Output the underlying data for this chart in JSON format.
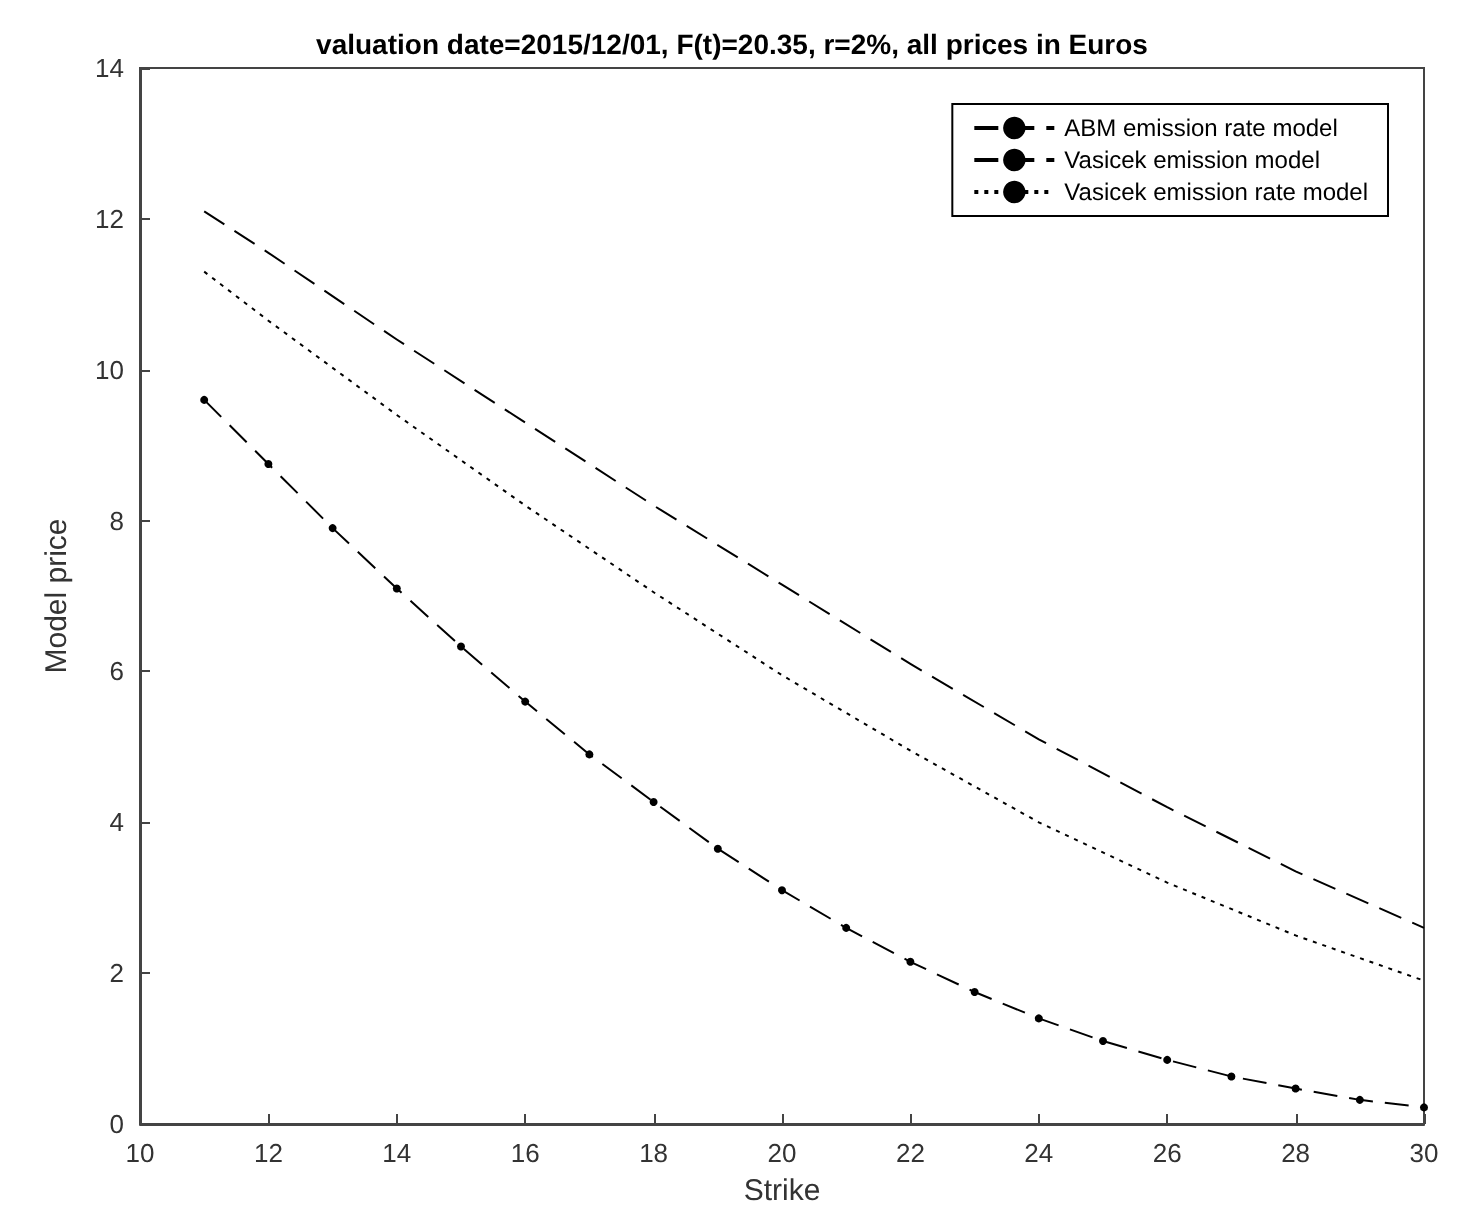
{
  "chart_data": {
    "type": "line",
    "title": "valuation date=2015/12/01, F(t)=20.35, r=2%, all prices in Euros",
    "xlabel": "Strike",
    "ylabel": "Model price",
    "xlim": [
      10,
      30
    ],
    "xticks": [
      10,
      12,
      14,
      16,
      18,
      20,
      22,
      24,
      26,
      28,
      30
    ],
    "ylim": [
      0,
      14
    ],
    "yticks": [
      0,
      2,
      4,
      6,
      8,
      10,
      12,
      14
    ],
    "grid": false,
    "legend": "top right",
    "series": [
      {
        "name": "ABM emission rate model",
        "color": "#000000",
        "line_style": "dashed",
        "marker": "none",
        "x": [
          11,
          12,
          14,
          16,
          18,
          20,
          22,
          24,
          26,
          28,
          30
        ],
        "values": [
          12.1,
          11.55,
          10.4,
          9.3,
          8.2,
          7.15,
          6.1,
          5.1,
          4.2,
          3.35,
          2.6
        ]
      },
      {
        "name": "Vasicek emission model",
        "color": "#000000",
        "line_style": "dashed",
        "marker": "circle",
        "x": [
          11,
          12,
          13,
          14,
          15,
          16,
          17,
          18,
          19,
          20,
          21,
          22,
          23,
          24,
          25,
          26,
          27,
          28,
          29,
          30
        ],
        "values": [
          9.6,
          8.75,
          7.9,
          7.1,
          6.33,
          5.6,
          4.9,
          4.27,
          3.65,
          3.1,
          2.6,
          2.15,
          1.75,
          1.4,
          1.1,
          0.85,
          0.63,
          0.47,
          0.32,
          0.22
        ]
      },
      {
        "name": "Vasicek emission rate model",
        "color": "#000000",
        "line_style": "dotted",
        "marker": "none",
        "x": [
          11,
          12,
          14,
          16,
          18,
          20,
          22,
          24,
          26,
          28,
          30
        ],
        "values": [
          11.3,
          10.65,
          9.4,
          8.2,
          7.05,
          5.95,
          4.95,
          4.0,
          3.2,
          2.5,
          1.9
        ]
      }
    ]
  }
}
